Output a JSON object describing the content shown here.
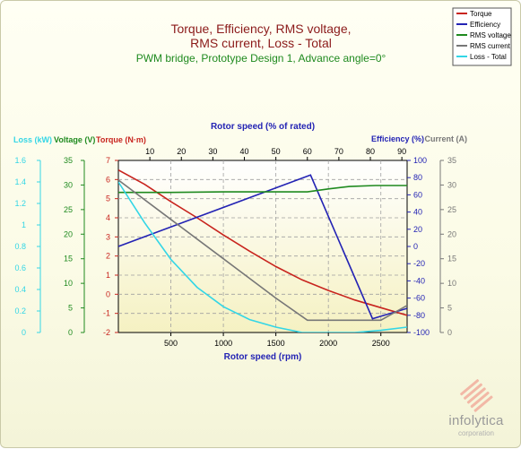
{
  "chart_data": {
    "type": "line",
    "title_lines": [
      "Torque, Efficiency, RMS voltage,",
      "RMS current, Loss - Total"
    ],
    "subtitle": "PWM bridge, Prototype Design 1, Advance angle=0°",
    "xlabel": "Rotor speed (rpm)",
    "x2label": "Rotor speed (% of rated)",
    "xlim": [
      0,
      2750
    ],
    "xticks": [
      500,
      1000,
      1500,
      2000,
      2500
    ],
    "x2ticks": [
      10,
      20,
      30,
      40,
      50,
      60,
      70,
      80,
      90
    ],
    "x2_rated_rpm": 3000,
    "grid": true,
    "legend_position": "top-right",
    "axes": {
      "loss": {
        "label": "Loss (kW)",
        "range": [
          0,
          1.6
        ],
        "ticks": [
          0,
          0.2,
          0.4,
          0.6,
          0.8,
          1,
          1.2,
          1.4,
          1.6
        ],
        "color": "#33d6e6"
      },
      "voltage": {
        "label": "Voltage (V)",
        "range": [
          0,
          35
        ],
        "ticks": [
          0,
          5,
          10,
          15,
          20,
          25,
          30,
          35
        ],
        "color": "#1f8a1f"
      },
      "torque": {
        "label": "Torque (N·m)",
        "range": [
          -2,
          7
        ],
        "ticks": [
          -2,
          -1,
          0,
          1,
          2,
          3,
          4,
          5,
          6,
          7
        ],
        "color": "#c8241e"
      },
      "efficiency": {
        "label": "Efficiency (%)",
        "range": [
          -100,
          100
        ],
        "ticks": [
          -100,
          -80,
          -60,
          -40,
          -20,
          0,
          20,
          40,
          60,
          80,
          100
        ],
        "color": "#2323b4"
      },
      "current": {
        "label": "Current (A)",
        "range": [
          0,
          35
        ],
        "ticks": [
          0,
          5,
          10,
          15,
          20,
          25,
          30,
          35
        ],
        "color": "#777777"
      }
    },
    "series": [
      {
        "name": "Torque",
        "axis": "torque",
        "color": "#c8241e",
        "x": [
          0,
          250,
          500,
          750,
          1000,
          1250,
          1500,
          1750,
          2000,
          2250,
          2500,
          2750
        ],
        "y": [
          6.5,
          5.75,
          4.85,
          4.0,
          3.1,
          2.25,
          1.45,
          0.75,
          0.2,
          -0.3,
          -0.7,
          -1.1
        ]
      },
      {
        "name": "Efficiency",
        "axis": "efficiency",
        "color": "#2323b4",
        "x": [
          0,
          1830,
          2420,
          2750
        ],
        "y": [
          0,
          83,
          -84,
          -72
        ]
      },
      {
        "name": "RMS voltage",
        "axis": "voltage",
        "color": "#1f8a1f",
        "x": [
          0,
          500,
          1000,
          1500,
          1800,
          2000,
          2200,
          2450,
          2750
        ],
        "y": [
          28.5,
          28.5,
          28.6,
          28.6,
          28.6,
          29.2,
          29.7,
          29.9,
          29.9
        ]
      },
      {
        "name": "RMS current",
        "axis": "current",
        "color": "#777777",
        "x": [
          0,
          500,
          1000,
          1500,
          1800,
          2000,
          2250,
          2500,
          2750
        ],
        "y": [
          31,
          23,
          15,
          7,
          2.5,
          2.5,
          2.5,
          2.5,
          5.5
        ]
      },
      {
        "name": "Loss - Total",
        "axis": "loss",
        "color": "#33d6e6",
        "x": [
          0,
          250,
          500,
          750,
          1000,
          1250,
          1500,
          1750,
          2000,
          2250,
          2500,
          2750
        ],
        "y": [
          1.4,
          1.02,
          0.68,
          0.42,
          0.24,
          0.12,
          0.05,
          0.0,
          0.0,
          0.0,
          0.02,
          0.05
        ]
      }
    ]
  },
  "brand": {
    "name": "infolytica",
    "sub": "corporation"
  }
}
